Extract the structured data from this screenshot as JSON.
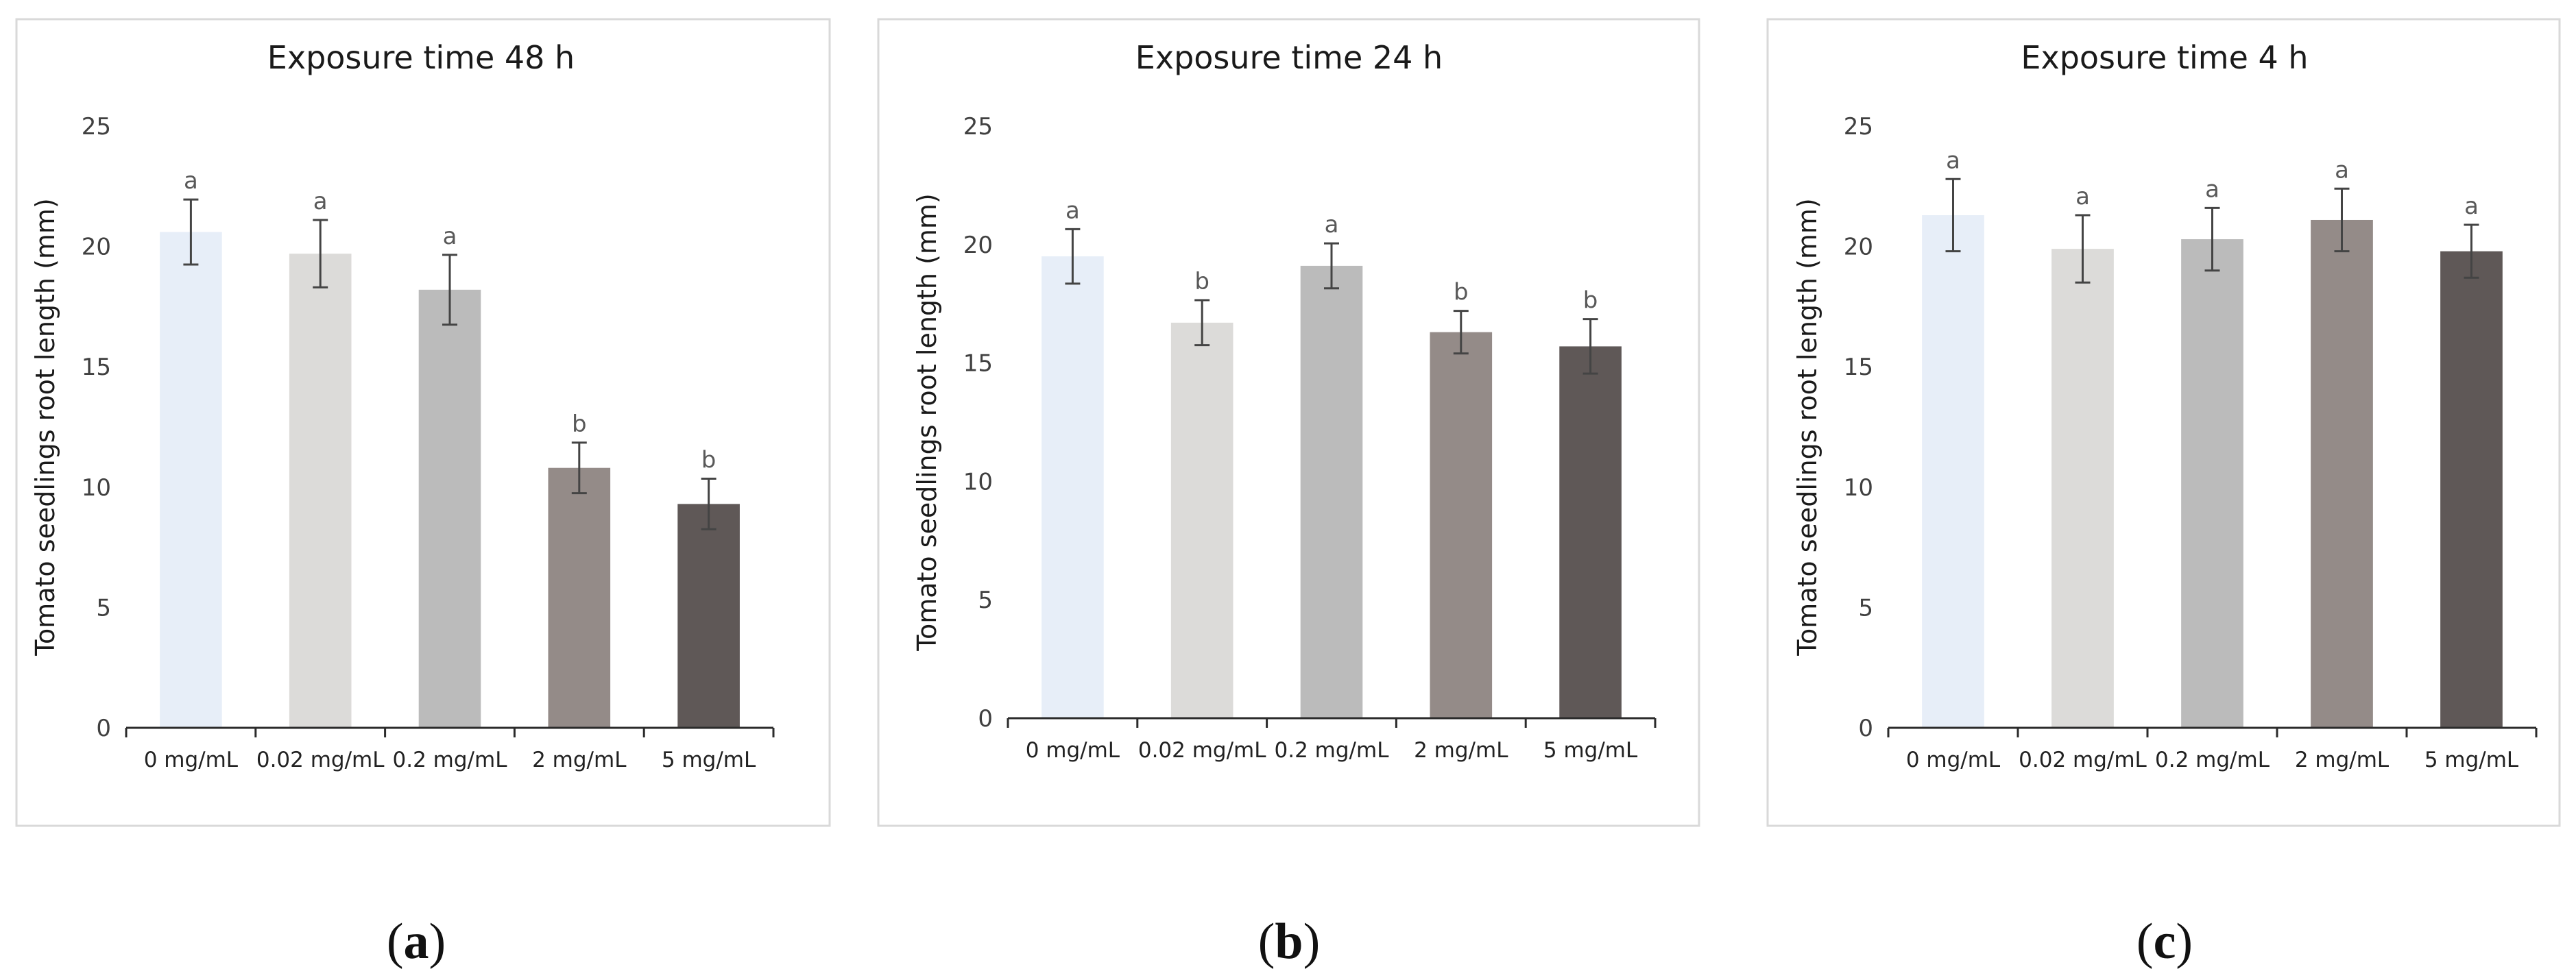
{
  "chart_data": [
    {
      "type": "bar",
      "panel": "(a)",
      "caption_open": "(",
      "caption_letter": "a",
      "caption_close": ")",
      "title": "Exposure time 48 h",
      "ylabel": "Tomato seedlings root length (mm)",
      "xlabel": "",
      "ylim": [
        0,
        25
      ],
      "yticks": [
        0,
        5,
        10,
        15,
        20,
        25
      ],
      "categories": [
        "0 mg/mL",
        "0.02 mg/mL",
        "0.2 mg/mL",
        "2 mg/mL",
        "5 mg/mL"
      ],
      "values": [
        20.6,
        19.7,
        18.2,
        10.8,
        9.3
      ],
      "errors": [
        1.35,
        1.4,
        1.45,
        1.05,
        1.05
      ],
      "significance": [
        "a",
        "a",
        "a",
        "b",
        "b"
      ],
      "colors": [
        "#e7eef8",
        "#dcdbd9",
        "#bbbbbb",
        "#948b88",
        "#5f5857"
      ]
    },
    {
      "type": "bar",
      "panel": "(b)",
      "caption_open": "(",
      "caption_letter": "b",
      "caption_close": ")",
      "title": "Exposure time 24 h",
      "ylabel": "Tomato seedlings root length (mm)",
      "xlabel": "",
      "ylim": [
        0,
        25
      ],
      "yticks": [
        0,
        5,
        10,
        15,
        20,
        25
      ],
      "categories": [
        "0 mg/mL",
        "0.02 mg/mL",
        "0.2 mg/mL",
        "2 mg/mL",
        "5 mg/mL"
      ],
      "values": [
        19.5,
        16.7,
        19.1,
        16.3,
        15.7
      ],
      "errors": [
        1.15,
        0.95,
        0.95,
        0.9,
        1.15
      ],
      "significance": [
        "a",
        "b",
        "a",
        "b",
        "b"
      ],
      "colors": [
        "#e7eef8",
        "#dcdbd9",
        "#bbbbbb",
        "#948b88",
        "#5f5857"
      ]
    },
    {
      "type": "bar",
      "panel": "(c)",
      "caption_open": "(",
      "caption_letter": "c",
      "caption_close": ")",
      "title": "Exposure time 4 h",
      "ylabel": "Tomato seedlings root length (mm)",
      "xlabel": "",
      "ylim": [
        0,
        25
      ],
      "yticks": [
        0,
        5,
        10,
        15,
        20,
        25
      ],
      "categories": [
        "0 mg/mL",
        "0.02 mg/mL",
        "0.2 mg/mL",
        "2 mg/mL",
        "5 mg/mL"
      ],
      "values": [
        21.3,
        19.9,
        20.3,
        21.1,
        19.8
      ],
      "errors": [
        1.5,
        1.4,
        1.3,
        1.3,
        1.1
      ],
      "significance": [
        "a",
        "a",
        "a",
        "a",
        "a"
      ],
      "colors": [
        "#e7eef8",
        "#dcdbd9",
        "#bbbbbb",
        "#948b88",
        "#5f5857"
      ]
    }
  ]
}
